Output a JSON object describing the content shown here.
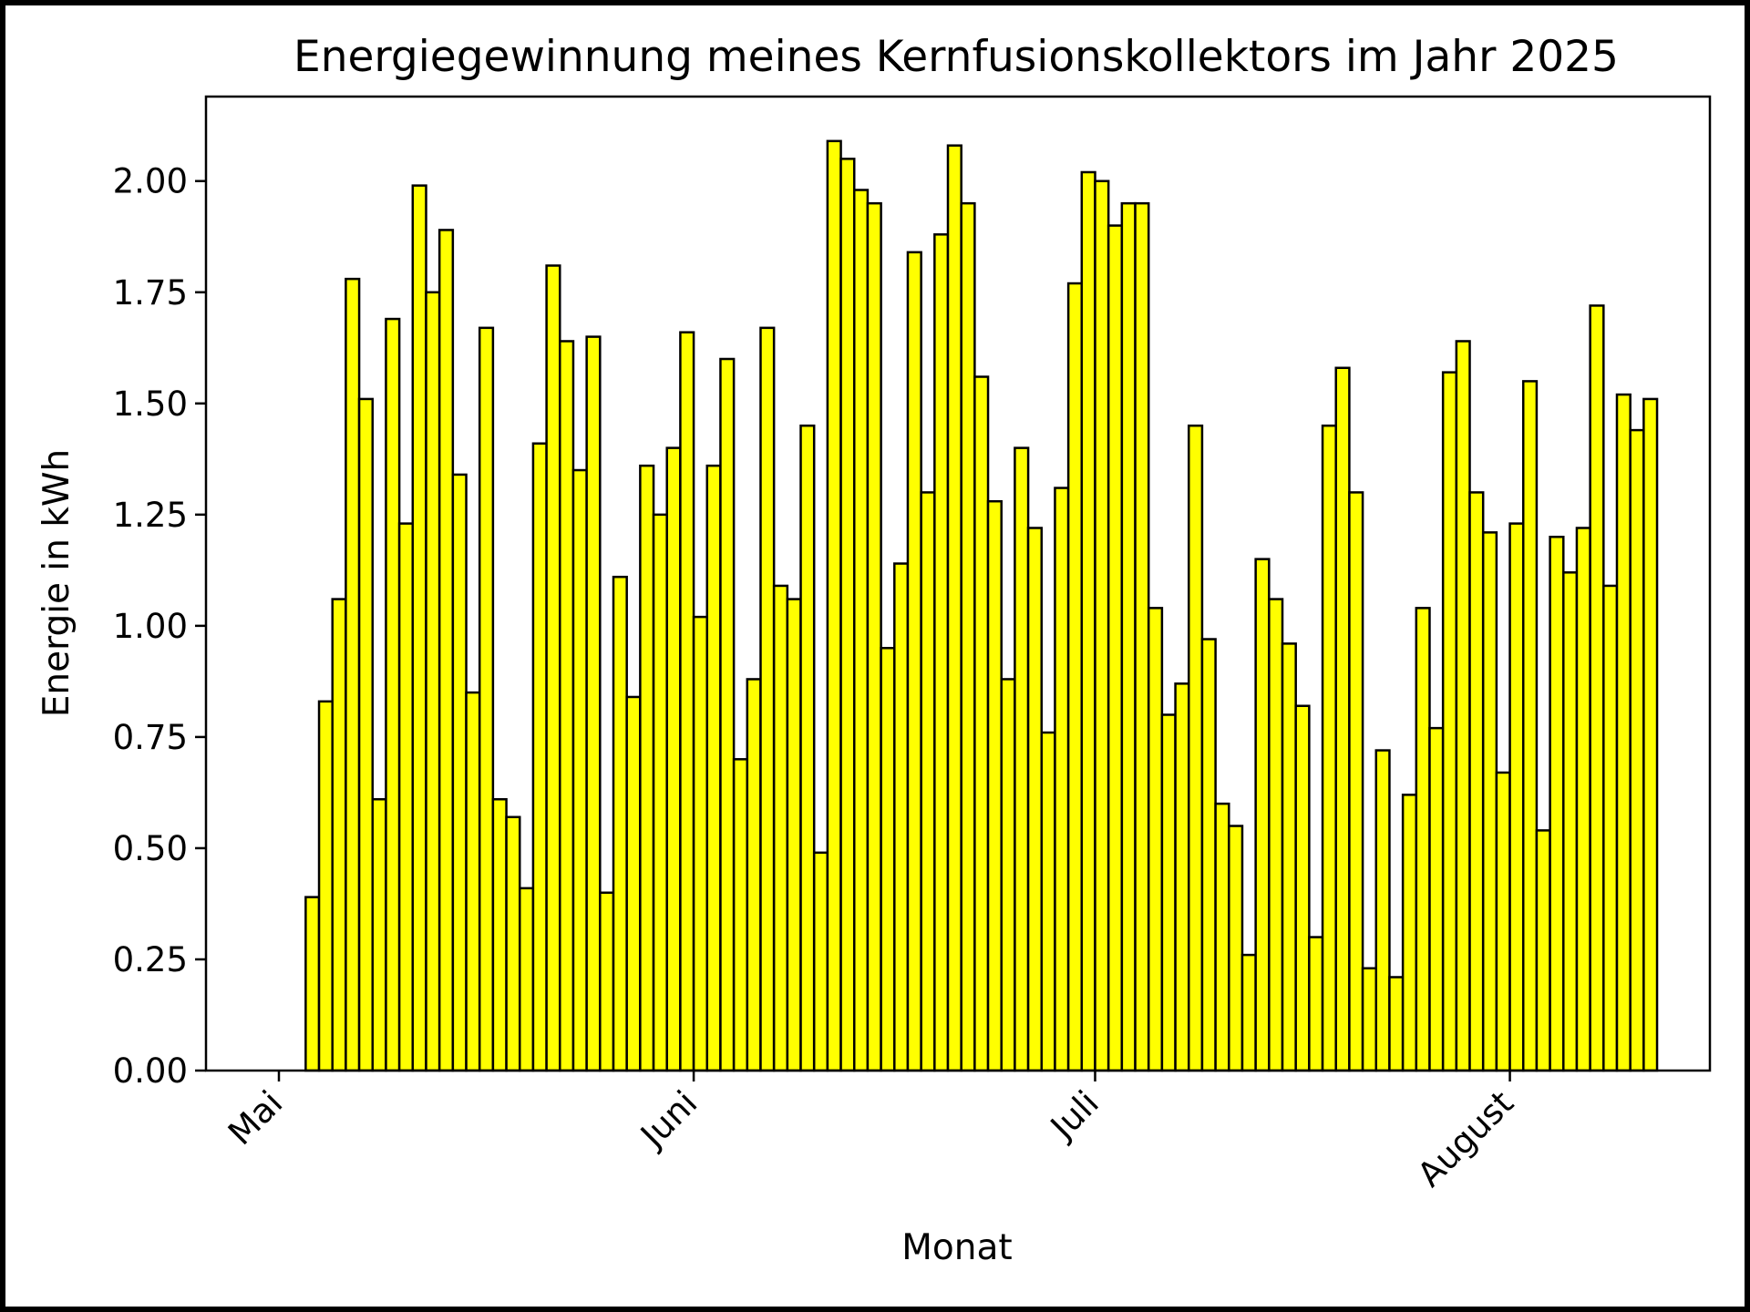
{
  "chart_data": {
    "type": "bar",
    "title": "Energiegewinnung meines Kernfusionskollektors im Jahr 2025",
    "xlabel": "Monat",
    "ylabel": "Energie in kWh",
    "ylim": [
      0,
      2.19
    ],
    "y_ticks": [
      "0.00",
      "0.25",
      "0.50",
      "0.75",
      "1.00",
      "1.25",
      "1.50",
      "1.75",
      "2.00"
    ],
    "x_ticks": [
      "Mai",
      "Juni",
      "Juli",
      "August"
    ],
    "bar_color": "#ffff00",
    "edge_color": "#000000",
    "grid": false,
    "start_date": "2025-05-01",
    "values": [
      0,
      0,
      0.39,
      0.83,
      1.06,
      1.78,
      1.51,
      0.61,
      1.69,
      1.23,
      1.99,
      1.75,
      1.89,
      1.34,
      0.85,
      1.67,
      0.61,
      0.57,
      0.41,
      1.41,
      1.81,
      1.64,
      1.35,
      1.65,
      0.4,
      1.11,
      0.84,
      1.36,
      1.25,
      1.4,
      1.66,
      1.02,
      1.36,
      1.6,
      0.7,
      0.88,
      1.67,
      1.09,
      1.06,
      1.45,
      0.49,
      2.09,
      2.05,
      1.98,
      1.95,
      0.95,
      1.14,
      1.84,
      1.3,
      1.88,
      2.08,
      1.95,
      1.56,
      1.28,
      0.88,
      1.4,
      1.22,
      0.76,
      1.31,
      1.77,
      2.02,
      2.0,
      1.9,
      1.95,
      1.95,
      1.04,
      0.8,
      0.87,
      1.45,
      0.97,
      0.6,
      0.55,
      0.26,
      1.15,
      1.06,
      0.96,
      0.82,
      0.3,
      1.45,
      1.58,
      1.3,
      0.23,
      0.72,
      0.21,
      0.62,
      1.04,
      0.77,
      1.57,
      1.64,
      1.3,
      1.21,
      0.67,
      1.23,
      1.55,
      0.54,
      1.2,
      1.12,
      1.22,
      1.72,
      1.09,
      1.52,
      1.44,
      1.51
    ]
  }
}
